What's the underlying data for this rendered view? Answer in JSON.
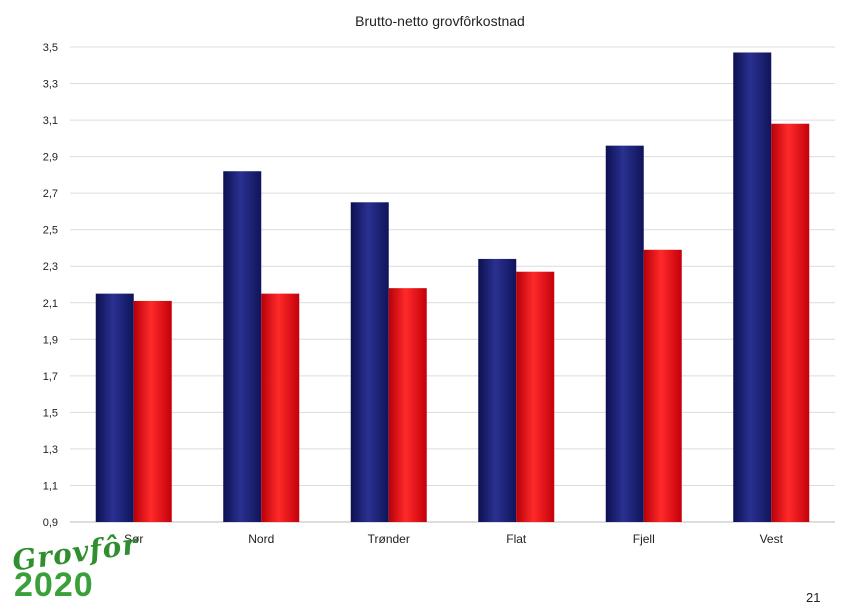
{
  "chart_data": {
    "type": "bar",
    "title": "Brutto-netto grovfôrkostnad",
    "categories": [
      "Sør",
      "Nord",
      "Trønder",
      "Flat",
      "Fjell",
      "Vest"
    ],
    "series": [
      {
        "values": [
          2.15,
          2.82,
          2.65,
          2.34,
          2.96,
          3.47
        ],
        "color": "#1a1f6e"
      },
      {
        "values": [
          2.11,
          2.15,
          2.18,
          2.27,
          2.39,
          3.08
        ],
        "color": "#e8101a"
      }
    ],
    "ylim": [
      0.9,
      3.5
    ],
    "yticks": [
      "0,9",
      "1,1",
      "1,3",
      "1,5",
      "1,7",
      "1,9",
      "2,1",
      "2,3",
      "2,5",
      "2,7",
      "2,9",
      "3,1",
      "3,3",
      "3,5"
    ],
    "grid": true,
    "legend": "none"
  },
  "logo": {
    "word": "Grovfôr",
    "year": "2020"
  },
  "page_number": "21"
}
